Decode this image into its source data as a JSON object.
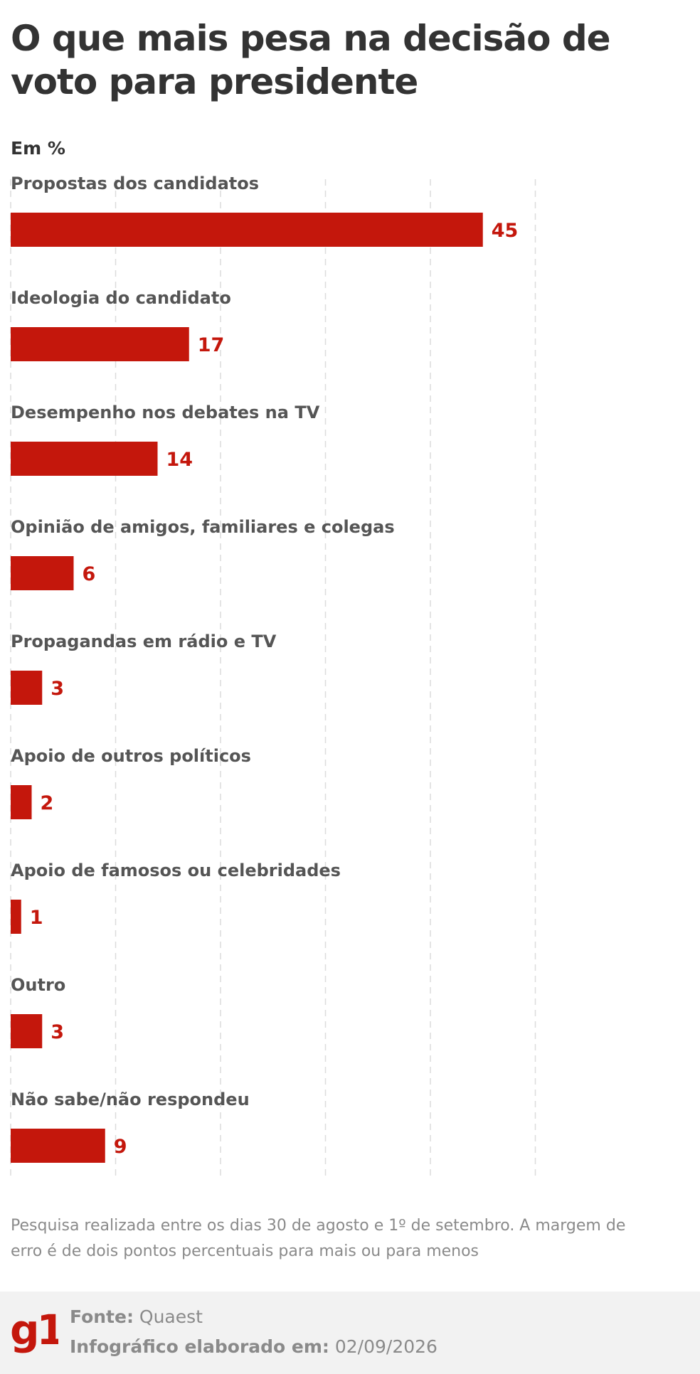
{
  "header": {
    "title": "O que mais pesa na decisão de voto para presidente",
    "unit": "Em %"
  },
  "chart_data": {
    "type": "bar",
    "orientation": "horizontal",
    "title": "O que mais pesa na decisão de voto para presidente",
    "xlabel": "",
    "ylabel": "",
    "unit": "Em %",
    "xlim": [
      0,
      50
    ],
    "grid": true,
    "bar_color": "#c4170c",
    "categories": [
      "Propostas dos candidatos",
      "Ideologia do candidato",
      "Desempenho nos debates na TV",
      "Opinião de amigos, familiares e colegas",
      "Propagandas em rádio e TV",
      "Apoio de outros políticos",
      "Apoio de famosos ou celebridades",
      "Outro",
      "Não sabe/não respondeu"
    ],
    "values": [
      45,
      17,
      14,
      6,
      3,
      2,
      1,
      3,
      9
    ]
  },
  "footer": {
    "note": "Pesquisa realizada entre os dias 30 de agosto e 1º de setembro. A margem de erro é de dois pontos percentuais para mais ou para menos",
    "source_label": "Fonte:",
    "source_value": "Quaest",
    "made_label": "Infográfico elaborado em:",
    "made_value": "02/09/2026",
    "logo_text": "g1",
    "brand_color": "#c4170c"
  }
}
